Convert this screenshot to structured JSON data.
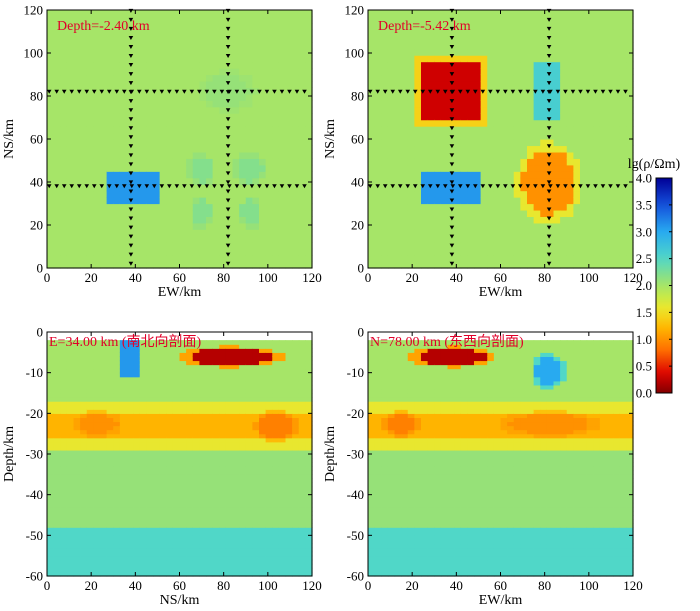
{
  "colors": {
    "red": "#cc0000",
    "dark_red": "#8b0000",
    "orange": "#ff9a00",
    "yellow": "#ffe000",
    "green_bg": "#9be07a",
    "cyan": "#40d8e8",
    "blue": "#1e88e5",
    "dark_blue": "#0000aa",
    "label_red": "#e0002a",
    "axis": "#000000"
  },
  "colorbar": {
    "title": "lg(ρ/Ωm)",
    "ticks": [
      "0.0",
      "0.5",
      "1.0",
      "1.5",
      "2.0",
      "2.5",
      "3.0",
      "3.5",
      "4.0"
    ],
    "range": [
      0,
      4
    ]
  },
  "chart_data": [
    {
      "type": "heatmap",
      "panel": "top-left",
      "label": "Depth=-2.40 km",
      "xlabel": "EW/km",
      "ylabel": "NS/km",
      "xlim": [
        0,
        120
      ],
      "ylim": [
        0,
        120
      ],
      "xticks": [
        "0",
        "20",
        "40",
        "60",
        "80",
        "100",
        "120"
      ],
      "yticks": [
        "0",
        "20",
        "40",
        "60",
        "80",
        "100",
        "120"
      ],
      "background_value": 2.0,
      "anomalies": [
        {
          "shape": "rect",
          "x": [
            26,
            50
          ],
          "y": [
            30,
            45
          ],
          "value": 3.1
        },
        {
          "shape": "ellipse",
          "x": [
            65,
            75
          ],
          "y": [
            40,
            52
          ],
          "value": 2.2
        },
        {
          "shape": "ellipse",
          "x": [
            86,
            98
          ],
          "y": [
            40,
            52
          ],
          "value": 2.2
        },
        {
          "shape": "ellipse",
          "x": [
            66,
            74
          ],
          "y": [
            20,
            32
          ],
          "value": 2.2
        },
        {
          "shape": "ellipse",
          "x": [
            88,
            96
          ],
          "y": [
            20,
            32
          ],
          "value": 2.2
        },
        {
          "shape": "ellipse",
          "x": [
            72,
            92
          ],
          "y": [
            75,
            90
          ],
          "value": 2.1
        }
      ],
      "survey_lines": {
        "ns_lines_x": [
          38,
          82
        ],
        "ew_lines_y": [
          38,
          82
        ]
      }
    },
    {
      "type": "heatmap",
      "panel": "top-right",
      "label": "Depth=-5.42 km",
      "xlabel": "EW/km",
      "ylabel": "NS/km",
      "xlim": [
        0,
        120
      ],
      "ylim": [
        0,
        120
      ],
      "xticks": [
        "0",
        "20",
        "40",
        "60",
        "80",
        "100",
        "120"
      ],
      "yticks": [
        "0",
        "20",
        "40",
        "60",
        "80",
        "100",
        "120"
      ],
      "background_value": 2.0,
      "anomalies": [
        {
          "shape": "rect",
          "x": [
            25,
            50
          ],
          "y": [
            70,
            95
          ],
          "value": 0.3,
          "halo": 1.4
        },
        {
          "shape": "rect",
          "x": [
            25,
            50
          ],
          "y": [
            30,
            45
          ],
          "value": 3.1
        },
        {
          "shape": "ellipse",
          "x": [
            70,
            94
          ],
          "y": [
            25,
            55
          ],
          "value": 1.0,
          "halo": 1.6
        },
        {
          "shape": "rect",
          "x": [
            76,
            88
          ],
          "y": [
            70,
            95
          ],
          "value": 2.6
        }
      ],
      "survey_lines": {
        "ns_lines_x": [
          38,
          82
        ],
        "ew_lines_y": [
          38,
          82
        ]
      }
    },
    {
      "type": "heatmap",
      "panel": "bottom-left",
      "label": "E=34.00 km (南北向剖面)",
      "xlabel": "NS/km",
      "ylabel": "Depth/km",
      "xlim": [
        0,
        120
      ],
      "ylim": [
        -60,
        0
      ],
      "xticks": [
        "0",
        "20",
        "40",
        "60",
        "80",
        "100",
        "120"
      ],
      "yticks": [
        "0",
        "-10",
        "-20",
        "-30",
        "-40",
        "-50",
        "-60"
      ],
      "layers": [
        {
          "depth": [
            -2,
            -17
          ],
          "value": 2.0
        },
        {
          "depth": [
            -17,
            -20
          ],
          "value": 1.6
        },
        {
          "depth": [
            -20,
            -26
          ],
          "value": 1.2
        },
        {
          "depth": [
            -26,
            -29
          ],
          "value": 1.6
        },
        {
          "depth": [
            -29,
            -48
          ],
          "value": 2.1
        },
        {
          "depth": [
            -48,
            -60
          ],
          "value": 2.5
        }
      ],
      "anomalies": [
        {
          "shape": "rect",
          "x": [
            34,
            42
          ],
          "y": [
            -2,
            -11
          ],
          "value": 3.1
        },
        {
          "shape": "lens",
          "x": [
            64,
            102
          ],
          "y": [
            -4,
            -8
          ],
          "value": 0.2
        },
        {
          "shape": "ellipse",
          "x": [
            14,
            32
          ],
          "y": [
            -20,
            -25
          ],
          "value": 1.0
        },
        {
          "shape": "ellipse",
          "x": [
            96,
            112
          ],
          "y": [
            -20,
            -26
          ],
          "value": 0.9
        }
      ]
    },
    {
      "type": "heatmap",
      "panel": "bottom-right",
      "label": "N=78.00 km (东西向剖面)",
      "xlabel": "EW/km",
      "ylabel": "Depth/km",
      "xlim": [
        0,
        120
      ],
      "ylim": [
        -60,
        0
      ],
      "xticks": [
        "0",
        "20",
        "40",
        "60",
        "80",
        "100",
        "120"
      ],
      "yticks": [
        "0",
        "-10",
        "-20",
        "-30",
        "-40",
        "-50",
        "-60"
      ],
      "layers": [
        {
          "depth": [
            -2,
            -17
          ],
          "value": 2.0
        },
        {
          "depth": [
            -17,
            -20
          ],
          "value": 1.6
        },
        {
          "depth": [
            -20,
            -26
          ],
          "value": 1.2
        },
        {
          "depth": [
            -26,
            -29
          ],
          "value": 1.6
        },
        {
          "depth": [
            -29,
            -48
          ],
          "value": 2.1
        },
        {
          "depth": [
            -48,
            -60
          ],
          "value": 2.5
        }
      ],
      "anomalies": [
        {
          "shape": "lens",
          "x": [
            22,
            54
          ],
          "y": [
            -4,
            -8
          ],
          "value": 0.2
        },
        {
          "shape": "ellipse",
          "x": [
            76,
            88
          ],
          "y": [
            -6,
            -13
          ],
          "value": 3.0
        },
        {
          "shape": "ellipse",
          "x": [
            8,
            22
          ],
          "y": [
            -20,
            -25
          ],
          "value": 0.9
        },
        {
          "shape": "ellipse",
          "x": [
            64,
            100
          ],
          "y": [
            -20,
            -25
          ],
          "value": 1.0
        }
      ]
    }
  ]
}
